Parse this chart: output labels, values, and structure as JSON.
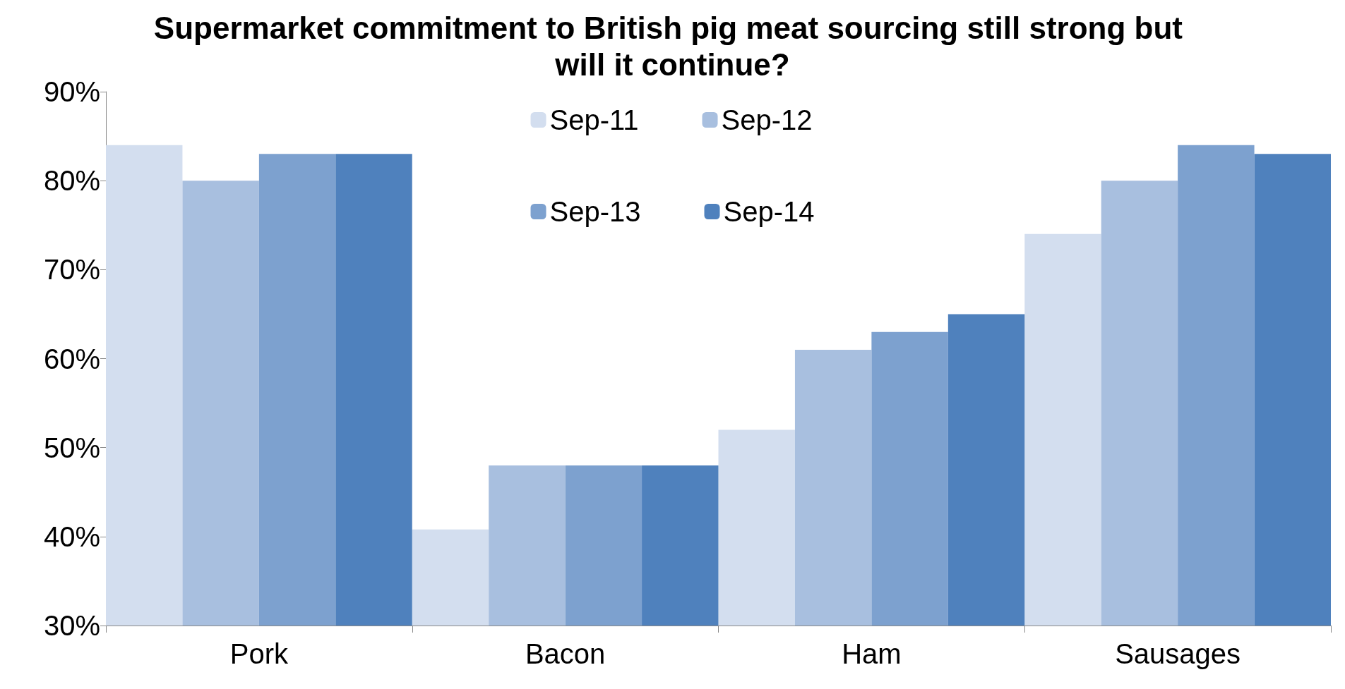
{
  "chart_data": {
    "type": "bar",
    "title": "Supermarket commitment to British pig meat sourcing still strong but will it continue?",
    "categories": [
      "Pork",
      "Bacon",
      "Ham",
      "Sausages"
    ],
    "series": [
      {
        "name": "Sep-11",
        "color": "#d3deef",
        "values": [
          84,
          40.8,
          52,
          74
        ]
      },
      {
        "name": "Sep-12",
        "color": "#a8bfdf",
        "values": [
          80,
          48,
          61,
          80
        ]
      },
      {
        "name": "Sep-13",
        "color": "#7da1cf",
        "values": [
          83,
          48,
          63,
          84
        ]
      },
      {
        "name": "Sep-14",
        "color": "#4f81bd",
        "values": [
          83,
          48,
          65,
          83
        ]
      }
    ],
    "ylim": [
      30,
      90
    ],
    "yticks": [
      {
        "value": 30,
        "label": "30%"
      },
      {
        "value": 40,
        "label": "40%"
      },
      {
        "value": 50,
        "label": "50%"
      },
      {
        "value": 60,
        "label": "60%"
      },
      {
        "value": 70,
        "label": "70%"
      },
      {
        "value": 80,
        "label": "80%"
      },
      {
        "value": 90,
        "label": "90%"
      }
    ],
    "grid": false,
    "legend": "top"
  }
}
